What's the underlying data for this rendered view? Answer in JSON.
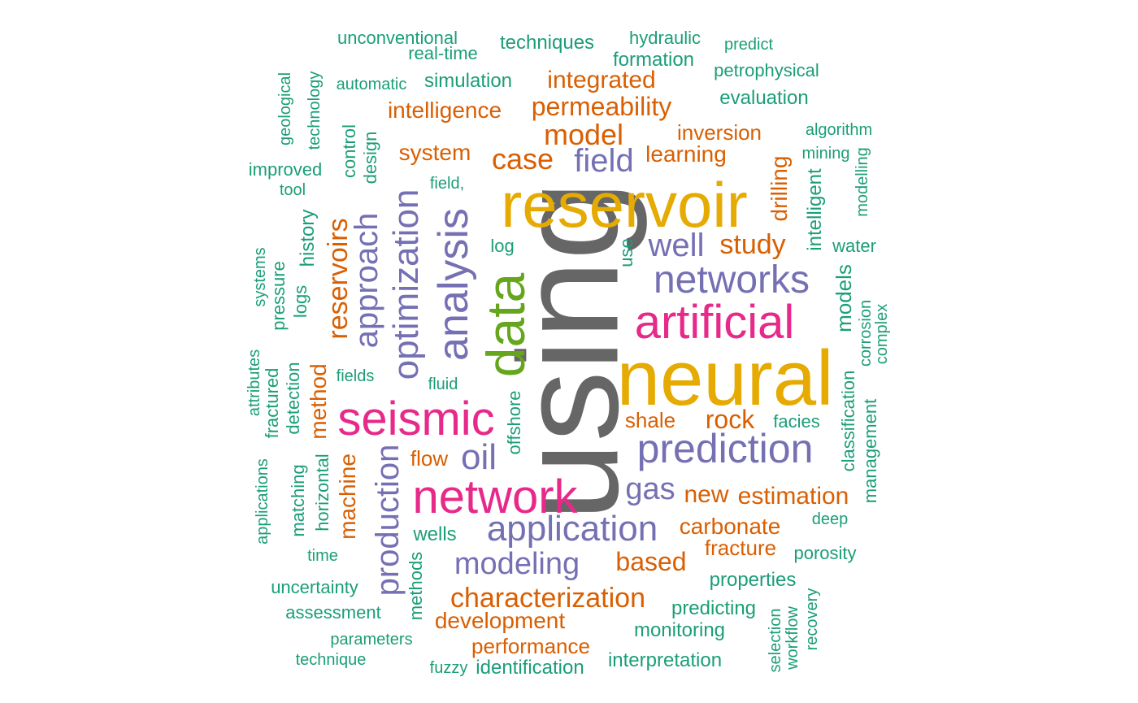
{
  "colors": {
    "gray": "#666666",
    "gold": "#e6ab02",
    "purple": "#7570b3",
    "pink": "#e7298a",
    "green": "#66a61e",
    "orange": "#d95f02",
    "teal": "#1b9e77"
  },
  "words": [
    {
      "text": "using",
      "color": "gray",
      "size": 175,
      "freq_rank": 1
    },
    {
      "text": "neural",
      "color": "gold",
      "size": 96,
      "freq_rank": 2
    },
    {
      "text": "reservoir",
      "color": "gold",
      "size": 78,
      "freq_rank": 3
    },
    {
      "text": "data",
      "color": "green",
      "size": 66,
      "freq_rank": 4
    },
    {
      "text": "network",
      "color": "pink",
      "size": 58,
      "freq_rank": 5
    },
    {
      "text": "seismic",
      "color": "pink",
      "size": 58,
      "freq_rank": 6
    },
    {
      "text": "artificial",
      "color": "pink",
      "size": 58,
      "freq_rank": 7
    },
    {
      "text": "analysis",
      "color": "purple",
      "size": 52,
      "freq_rank": 8
    },
    {
      "text": "prediction",
      "color": "purple",
      "size": 50,
      "freq_rank": 9
    },
    {
      "text": "optimization",
      "color": "purple",
      "size": 44,
      "freq_rank": 10
    },
    {
      "text": "networks",
      "color": "purple",
      "size": 48,
      "freq_rank": 11
    },
    {
      "text": "application",
      "color": "purple",
      "size": 44,
      "freq_rank": 12
    },
    {
      "text": "production",
      "color": "purple",
      "size": 40,
      "freq_rank": 13
    },
    {
      "text": "well",
      "color": "purple",
      "size": 40,
      "freq_rank": 14
    },
    {
      "text": "approach",
      "color": "purple",
      "size": 40,
      "freq_rank": 15
    },
    {
      "text": "oil",
      "color": "purple",
      "size": 44,
      "freq_rank": 16
    },
    {
      "text": "modeling",
      "color": "purple",
      "size": 38,
      "freq_rank": 17
    },
    {
      "text": "gas",
      "color": "purple",
      "size": 38,
      "freq_rank": 18
    },
    {
      "text": "field",
      "color": "purple",
      "size": 40,
      "freq_rank": 19
    },
    {
      "text": "model",
      "color": "orange",
      "size": 36,
      "freq_rank": 20
    },
    {
      "text": "study",
      "color": "orange",
      "size": 34,
      "freq_rank": 21
    },
    {
      "text": "case",
      "color": "orange",
      "size": 36,
      "freq_rank": 22
    },
    {
      "text": "reservoirs",
      "color": "orange",
      "size": 34,
      "freq_rank": 23
    },
    {
      "text": "characterization",
      "color": "orange",
      "size": 34,
      "freq_rank": 24
    },
    {
      "text": "permeability",
      "color": "orange",
      "size": 32,
      "freq_rank": 25
    },
    {
      "text": "estimation",
      "color": "orange",
      "size": 30,
      "freq_rank": 26
    },
    {
      "text": "rock",
      "color": "orange",
      "size": 32,
      "freq_rank": 27
    },
    {
      "text": "based",
      "color": "orange",
      "size": 32,
      "freq_rank": 28
    },
    {
      "text": "integrated",
      "color": "orange",
      "size": 30,
      "freq_rank": 29
    },
    {
      "text": "drilling",
      "color": "orange",
      "size": 28,
      "freq_rank": 30
    },
    {
      "text": "new",
      "color": "orange",
      "size": 30,
      "freq_rank": 31
    },
    {
      "text": "machine",
      "color": "orange",
      "size": 28,
      "freq_rank": 32
    },
    {
      "text": "method",
      "color": "orange",
      "size": 28,
      "freq_rank": 33
    },
    {
      "text": "carbonate",
      "color": "orange",
      "size": 28,
      "freq_rank": 34
    },
    {
      "text": "development",
      "color": "orange",
      "size": 28,
      "freq_rank": 35
    },
    {
      "text": "intelligence",
      "color": "orange",
      "size": 28,
      "freq_rank": 36
    },
    {
      "text": "learning",
      "color": "orange",
      "size": 28,
      "freq_rank": 37
    },
    {
      "text": "system",
      "color": "orange",
      "size": 28,
      "freq_rank": 38
    },
    {
      "text": "inversion",
      "color": "orange",
      "size": 26,
      "freq_rank": 39
    },
    {
      "text": "shale",
      "color": "orange",
      "size": 26,
      "freq_rank": 40
    },
    {
      "text": "fracture",
      "color": "orange",
      "size": 26,
      "freq_rank": 41
    },
    {
      "text": "performance",
      "color": "orange",
      "size": 26,
      "freq_rank": 42
    },
    {
      "text": "flow",
      "color": "orange",
      "size": 26,
      "freq_rank": 43
    },
    {
      "text": "models",
      "color": "teal",
      "size": 26,
      "freq_rank": 44
    },
    {
      "text": "wells",
      "color": "teal",
      "size": 24,
      "freq_rank": 45
    },
    {
      "text": "simulation",
      "color": "teal",
      "size": 24,
      "freq_rank": 46
    },
    {
      "text": "techniques",
      "color": "teal",
      "size": 24,
      "freq_rank": 47
    },
    {
      "text": "monitoring",
      "color": "teal",
      "size": 24,
      "freq_rank": 48
    },
    {
      "text": "predicting",
      "color": "teal",
      "size": 24,
      "freq_rank": 49
    },
    {
      "text": "interpretation",
      "color": "teal",
      "size": 24,
      "freq_rank": 50
    },
    {
      "text": "identification",
      "color": "teal",
      "size": 24,
      "freq_rank": 51
    },
    {
      "text": "formation",
      "color": "teal",
      "size": 24,
      "freq_rank": 52
    },
    {
      "text": "evaluation",
      "color": "teal",
      "size": 24,
      "freq_rank": 53
    },
    {
      "text": "properties",
      "color": "teal",
      "size": 24,
      "freq_rank": 54
    },
    {
      "text": "intelligent",
      "color": "teal",
      "size": 24,
      "freq_rank": 55
    },
    {
      "text": "history",
      "color": "teal",
      "size": 24,
      "freq_rank": 56
    },
    {
      "text": "classification",
      "color": "teal",
      "size": 22,
      "freq_rank": 57
    },
    {
      "text": "management",
      "color": "teal",
      "size": 22,
      "freq_rank": 58
    },
    {
      "text": "methods",
      "color": "teal",
      "size": 22,
      "freq_rank": 59
    },
    {
      "text": "offshore",
      "color": "teal",
      "size": 22,
      "freq_rank": 60
    },
    {
      "text": "petrophysical",
      "color": "teal",
      "size": 22,
      "freq_rank": 61
    },
    {
      "text": "hydraulic",
      "color": "teal",
      "size": 22,
      "freq_rank": 62
    },
    {
      "text": "real-time",
      "color": "teal",
      "size": 22,
      "freq_rank": 63
    },
    {
      "text": "unconventional",
      "color": "teal",
      "size": 22,
      "freq_rank": 64
    },
    {
      "text": "automatic",
      "color": "teal",
      "size": 20,
      "freq_rank": 65
    },
    {
      "text": "predict",
      "color": "teal",
      "size": 20,
      "freq_rank": 66
    },
    {
      "text": "algorithm",
      "color": "teal",
      "size": 20,
      "freq_rank": 67
    },
    {
      "text": "mining",
      "color": "teal",
      "size": 20,
      "freq_rank": 68
    },
    {
      "text": "water",
      "color": "teal",
      "size": 22,
      "freq_rank": 69
    },
    {
      "text": "facies",
      "color": "teal",
      "size": 22,
      "freq_rank": 70
    },
    {
      "text": "deep",
      "color": "teal",
      "size": 20,
      "freq_rank": 71
    },
    {
      "text": "porosity",
      "color": "teal",
      "size": 22,
      "freq_rank": 72
    },
    {
      "text": "uncertainty",
      "color": "teal",
      "size": 22,
      "freq_rank": 73
    },
    {
      "text": "assessment",
      "color": "teal",
      "size": 22,
      "freq_rank": 74
    },
    {
      "text": "parameters",
      "color": "teal",
      "size": 20,
      "freq_rank": 75
    },
    {
      "text": "technique",
      "color": "teal",
      "size": 20,
      "freq_rank": 76
    },
    {
      "text": "fuzzy",
      "color": "teal",
      "size": 20,
      "freq_rank": 77
    },
    {
      "text": "time",
      "color": "teal",
      "size": 20,
      "freq_rank": 78
    },
    {
      "text": "improved",
      "color": "teal",
      "size": 22,
      "freq_rank": 79
    },
    {
      "text": "tool",
      "color": "teal",
      "size": 20,
      "freq_rank": 80
    },
    {
      "text": "field,",
      "color": "teal",
      "size": 20,
      "freq_rank": 81
    },
    {
      "text": "log",
      "color": "teal",
      "size": 22,
      "freq_rank": 82
    },
    {
      "text": "fields",
      "color": "teal",
      "size": 20,
      "freq_rank": 83
    },
    {
      "text": "fluid",
      "color": "teal",
      "size": 20,
      "freq_rank": 84
    },
    {
      "text": "use",
      "color": "teal",
      "size": 22,
      "freq_rank": 85
    },
    {
      "text": "geological",
      "color": "teal",
      "size": 20,
      "freq_rank": 86
    },
    {
      "text": "technology",
      "color": "teal",
      "size": 20,
      "freq_rank": 87
    },
    {
      "text": "control",
      "color": "teal",
      "size": 22,
      "freq_rank": 88
    },
    {
      "text": "design",
      "color": "teal",
      "size": 22,
      "freq_rank": 89
    },
    {
      "text": "systems",
      "color": "teal",
      "size": 20,
      "freq_rank": 90
    },
    {
      "text": "pressure",
      "color": "teal",
      "size": 22,
      "freq_rank": 91
    },
    {
      "text": "logs",
      "color": "teal",
      "size": 22,
      "freq_rank": 92
    },
    {
      "text": "attributes",
      "color": "teal",
      "size": 20,
      "freq_rank": 93
    },
    {
      "text": "fractured",
      "color": "teal",
      "size": 22,
      "freq_rank": 94
    },
    {
      "text": "detection",
      "color": "teal",
      "size": 22,
      "freq_rank": 95
    },
    {
      "text": "applications",
      "color": "teal",
      "size": 20,
      "freq_rank": 96
    },
    {
      "text": "matching",
      "color": "teal",
      "size": 22,
      "freq_rank": 97
    },
    {
      "text": "horizontal",
      "color": "teal",
      "size": 22,
      "freq_rank": 98
    },
    {
      "text": "modelling",
      "color": "teal",
      "size": 20,
      "freq_rank": 99
    },
    {
      "text": "corrosion",
      "color": "teal",
      "size": 20,
      "freq_rank": 100
    },
    {
      "text": "complex",
      "color": "teal",
      "size": 20,
      "freq_rank": 101
    },
    {
      "text": "selection",
      "color": "teal",
      "size": 20,
      "freq_rank": 102
    },
    {
      "text": "workflow",
      "color": "teal",
      "size": 20,
      "freq_rank": 103
    },
    {
      "text": "recovery",
      "color": "teal",
      "size": 20,
      "freq_rank": 104
    }
  ]
}
